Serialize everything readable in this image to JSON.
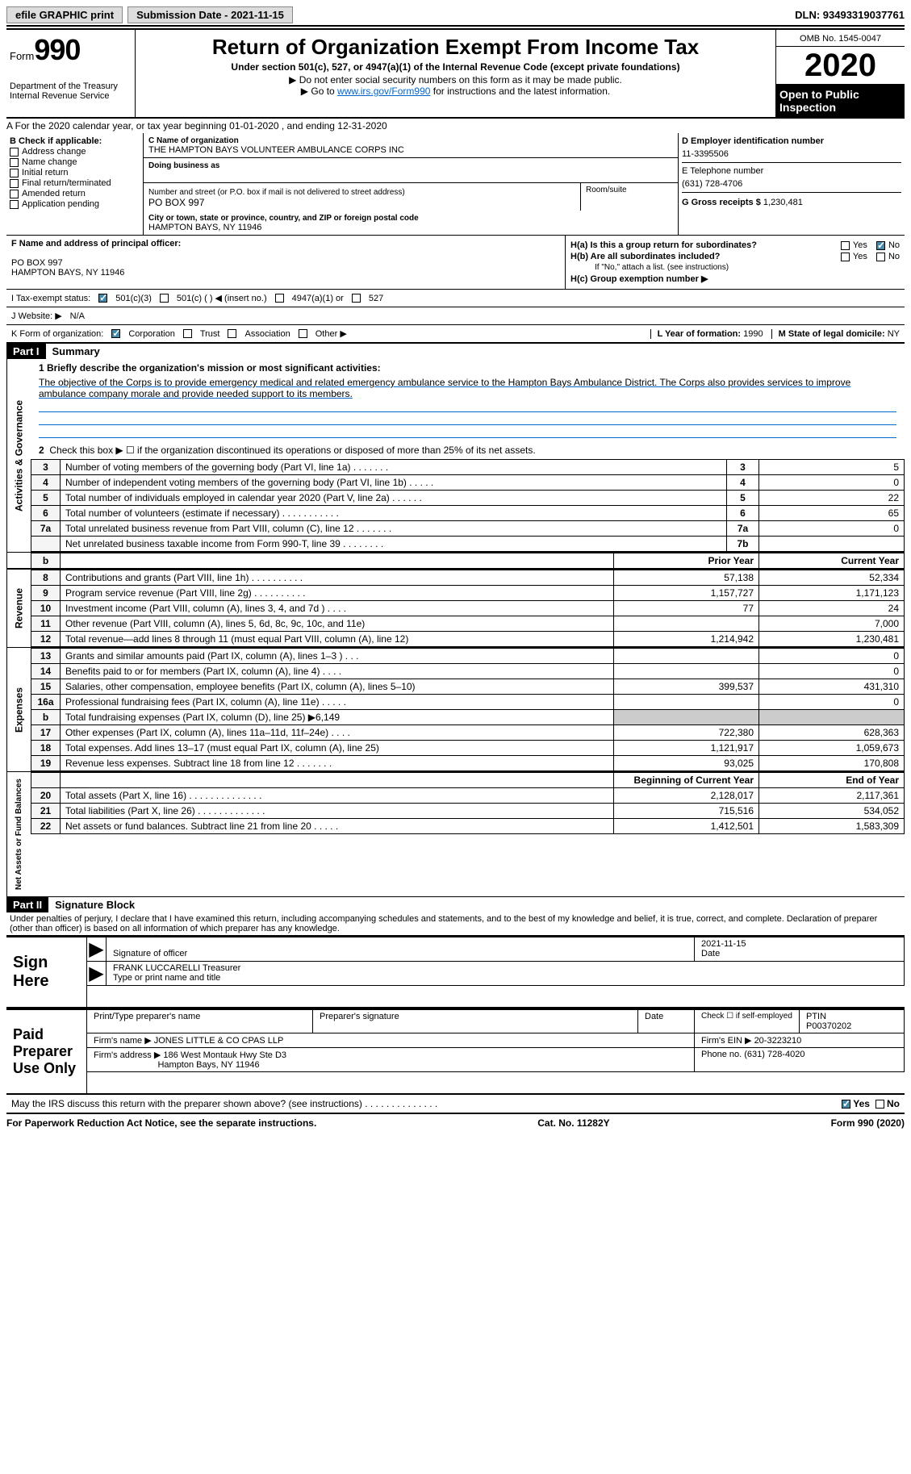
{
  "topbar": {
    "efile_label": "efile GRAPHIC print",
    "submission_label": "Submission Date - 2021-11-15",
    "dln_label": "DLN: 93493319037761"
  },
  "header": {
    "form_word": "Form",
    "form_no": "990",
    "dept": "Department of the Treasury Internal Revenue Service",
    "title": "Return of Organization Exempt From Income Tax",
    "subtitle": "Under section 501(c), 527, or 4947(a)(1) of the Internal Revenue Code (except private foundations)",
    "notice1": "▶ Do not enter social security numbers on this form as it may be made public.",
    "notice2_pre": "▶ Go to ",
    "notice2_link": "www.irs.gov/Form990",
    "notice2_post": " for instructions and the latest information.",
    "omb": "OMB No. 1545-0047",
    "year": "2020",
    "open1": "Open to Public",
    "open2": "Inspection"
  },
  "line_a": "A For the 2020 calendar year, or tax year beginning 01-01-2020   , and ending 12-31-2020",
  "col_b": {
    "title": "B Check if applicable:",
    "items": [
      "Address change",
      "Name change",
      "Initial return",
      "Final return/terminated",
      "Amended return",
      "Application pending"
    ]
  },
  "col_c": {
    "name_lbl": "C Name of organization",
    "name": "THE HAMPTON BAYS VOLUNTEER AMBULANCE CORPS INC",
    "dba_lbl": "Doing business as",
    "dba": "",
    "addr_lbl": "Number and street (or P.O. box if mail is not delivered to street address)",
    "room_lbl": "Room/suite",
    "addr": "PO BOX 997",
    "city_lbl": "City or town, state or province, country, and ZIP or foreign postal code",
    "city": "HAMPTON BAYS, NY  11946"
  },
  "col_d": {
    "ein_lbl": "D Employer identification number",
    "ein": "11-3395506",
    "tel_lbl": "E Telephone number",
    "tel": "(631) 728-4706",
    "gross_lbl": "G Gross receipts $",
    "gross": "1,230,481"
  },
  "row_f": {
    "f_lbl": "F Name and address of principal officer:",
    "f_addr1": "PO BOX 997",
    "f_addr2": "HAMPTON BAYS, NY  11946",
    "ha_lbl": "H(a)  Is this a group return for subordinates?",
    "hb_lbl": "H(b)  Are all subordinates included?",
    "hb_note": "If \"No,\" attach a list. (see instructions)",
    "hc_lbl": "H(c)  Group exemption number ▶",
    "yes": "Yes",
    "no": "No"
  },
  "status": {
    "i_lbl": "I   Tax-exempt status:",
    "c3": "501(c)(3)",
    "c": "501(c) (  ) ◀ (insert no.)",
    "s4947": "4947(a)(1) or",
    "s527": "527",
    "j_lbl": "J   Website: ▶",
    "j_val": "N/A"
  },
  "row_k": {
    "k_lbl": "K Form of organization:",
    "corp": "Corporation",
    "trust": "Trust",
    "assoc": "Association",
    "other": "Other ▶",
    "l_lbl": "L Year of formation:",
    "l_val": "1990",
    "m_lbl": "M State of legal domicile:",
    "m_val": "NY"
  },
  "part1": {
    "bar": "Part I",
    "title": "Summary",
    "brief_lbl": "1   Briefly describe the organization's mission or most significant activities:",
    "brief": "The objective of the Corps is to provide emergency medical and related emergency ambulance service to the Hampton Bays Ambulance District. The Corps also provides services to improve ambulance company morale and provide needed support to its members.",
    "line2": "Check this box ▶ ☐  if the organization discontinued its operations or disposed of more than 25% of its net assets."
  },
  "sections": {
    "gov": "Activities & Governance",
    "rev": "Revenue",
    "exp": "Expenses",
    "net": "Net Assets or Fund Balances"
  },
  "col_headers": {
    "prior": "Prior Year",
    "current": "Current Year",
    "begin": "Beginning of Current Year",
    "end": "End of Year"
  },
  "gov_rows": [
    {
      "n": "3",
      "d": "Number of voting members of the governing body (Part VI, line 1a)  .   .   .   .   .   .   .",
      "t": "3",
      "v": "5"
    },
    {
      "n": "4",
      "d": "Number of independent voting members of the governing body (Part VI, line 1b)  .   .   .   .   .",
      "t": "4",
      "v": "0"
    },
    {
      "n": "5",
      "d": "Total number of individuals employed in calendar year 2020 (Part V, line 2a)  .   .   .   .   .   .",
      "t": "5",
      "v": "22"
    },
    {
      "n": "6",
      "d": "Total number of volunteers (estimate if necessary)  .   .   .   .   .   .   .   .   .   .   .",
      "t": "6",
      "v": "65"
    },
    {
      "n": "7a",
      "d": "Total unrelated business revenue from Part VIII, column (C), line 12  .   .   .   .   .   .   .",
      "t": "7a",
      "v": "0"
    },
    {
      "n": "",
      "d": "Net unrelated business taxable income from Form 990-T, line 39  .   .   .   .   .   .   .   .",
      "t": "7b",
      "v": ""
    }
  ],
  "rev_rows": [
    {
      "n": "8",
      "d": "Contributions and grants (Part VIII, line 1h)  .   .   .   .   .   .   .   .   .   .",
      "p": "57,138",
      "c": "52,334"
    },
    {
      "n": "9",
      "d": "Program service revenue (Part VIII, line 2g)  .   .   .   .   .   .   .   .   .   .",
      "p": "1,157,727",
      "c": "1,171,123"
    },
    {
      "n": "10",
      "d": "Investment income (Part VIII, column (A), lines 3, 4, and 7d )  .   .   .   .",
      "p": "77",
      "c": "24"
    },
    {
      "n": "11",
      "d": "Other revenue (Part VIII, column (A), lines 5, 6d, 8c, 9c, 10c, and 11e)",
      "p": "",
      "c": "7,000"
    },
    {
      "n": "12",
      "d": "Total revenue—add lines 8 through 11 (must equal Part VIII, column (A), line 12)",
      "p": "1,214,942",
      "c": "1,230,481"
    }
  ],
  "exp_rows": [
    {
      "n": "13",
      "d": "Grants and similar amounts paid (Part IX, column (A), lines 1–3 )  .   .   .",
      "p": "",
      "c": "0"
    },
    {
      "n": "14",
      "d": "Benefits paid to or for members (Part IX, column (A), line 4)  .   .   .   .",
      "p": "",
      "c": "0"
    },
    {
      "n": "15",
      "d": "Salaries, other compensation, employee benefits (Part IX, column (A), lines 5–10)",
      "p": "399,537",
      "c": "431,310"
    },
    {
      "n": "16a",
      "d": "Professional fundraising fees (Part IX, column (A), line 11e)  .   .   .   .   .",
      "p": "",
      "c": "0"
    },
    {
      "n": "b",
      "d": "Total fundraising expenses (Part IX, column (D), line 25) ▶6,149",
      "p": "shade",
      "c": "shade"
    },
    {
      "n": "17",
      "d": "Other expenses (Part IX, column (A), lines 11a–11d, 11f–24e)  .   .   .   .",
      "p": "722,380",
      "c": "628,363"
    },
    {
      "n": "18",
      "d": "Total expenses. Add lines 13–17 (must equal Part IX, column (A), line 25)",
      "p": "1,121,917",
      "c": "1,059,673"
    },
    {
      "n": "19",
      "d": "Revenue less expenses. Subtract line 18 from line 12  .   .   .   .   .   .   .",
      "p": "93,025",
      "c": "170,808"
    }
  ],
  "net_rows": [
    {
      "n": "20",
      "d": "Total assets (Part X, line 16)  .   .   .   .   .   .   .   .   .   .   .   .   .   .",
      "p": "2,128,017",
      "c": "2,117,361"
    },
    {
      "n": "21",
      "d": "Total liabilities (Part X, line 26)  .   .   .   .   .   .   .   .   .   .   .   .   .",
      "p": "715,516",
      "c": "534,052"
    },
    {
      "n": "22",
      "d": "Net assets or fund balances. Subtract line 21 from line 20  .   .   .   .   .",
      "p": "1,412,501",
      "c": "1,583,309"
    }
  ],
  "part2": {
    "bar": "Part II",
    "title": "Signature Block",
    "decl": "Under penalties of perjury, I declare that I have examined this return, including accompanying schedules and statements, and to the best of my knowledge and belief, it is true, correct, and complete. Declaration of preparer (other than officer) is based on all information of which preparer has any knowledge."
  },
  "sign": {
    "here": "Sign Here",
    "sig_lbl": "Signature of officer",
    "date_lbl": "Date",
    "date": "2021-11-15",
    "name": "FRANK LUCCARELLI  Treasurer",
    "name_lbl": "Type or print name and title"
  },
  "paid": {
    "title": "Paid Preparer Use Only",
    "print_lbl": "Print/Type preparer's name",
    "sig_lbl": "Preparer's signature",
    "date_lbl": "Date",
    "check_lbl": "Check ☐ if self-employed",
    "ptin_lbl": "PTIN",
    "ptin": "P00370202",
    "firm_name_lbl": "Firm's name   ▶",
    "firm_name": "JONES LITTLE & CO CPAS LLP",
    "firm_ein_lbl": "Firm's EIN ▶",
    "firm_ein": "20-3223210",
    "firm_addr_lbl": "Firm's address ▶",
    "firm_addr1": "186 West Montauk Hwy Ste D3",
    "firm_addr2": "Hampton Bays, NY  11946",
    "phone_lbl": "Phone no.",
    "phone": "(631) 728-4020"
  },
  "discuss": {
    "text": "May the IRS discuss this return with the preparer shown above? (see instructions)  .   .   .   .   .   .   .   .   .   .   .   .   .   .",
    "yes": "Yes",
    "no": "No"
  },
  "footer": {
    "left": "For Paperwork Reduction Act Notice, see the separate instructions.",
    "mid": "Cat. No. 11282Y",
    "right": "Form 990 (2020)"
  }
}
